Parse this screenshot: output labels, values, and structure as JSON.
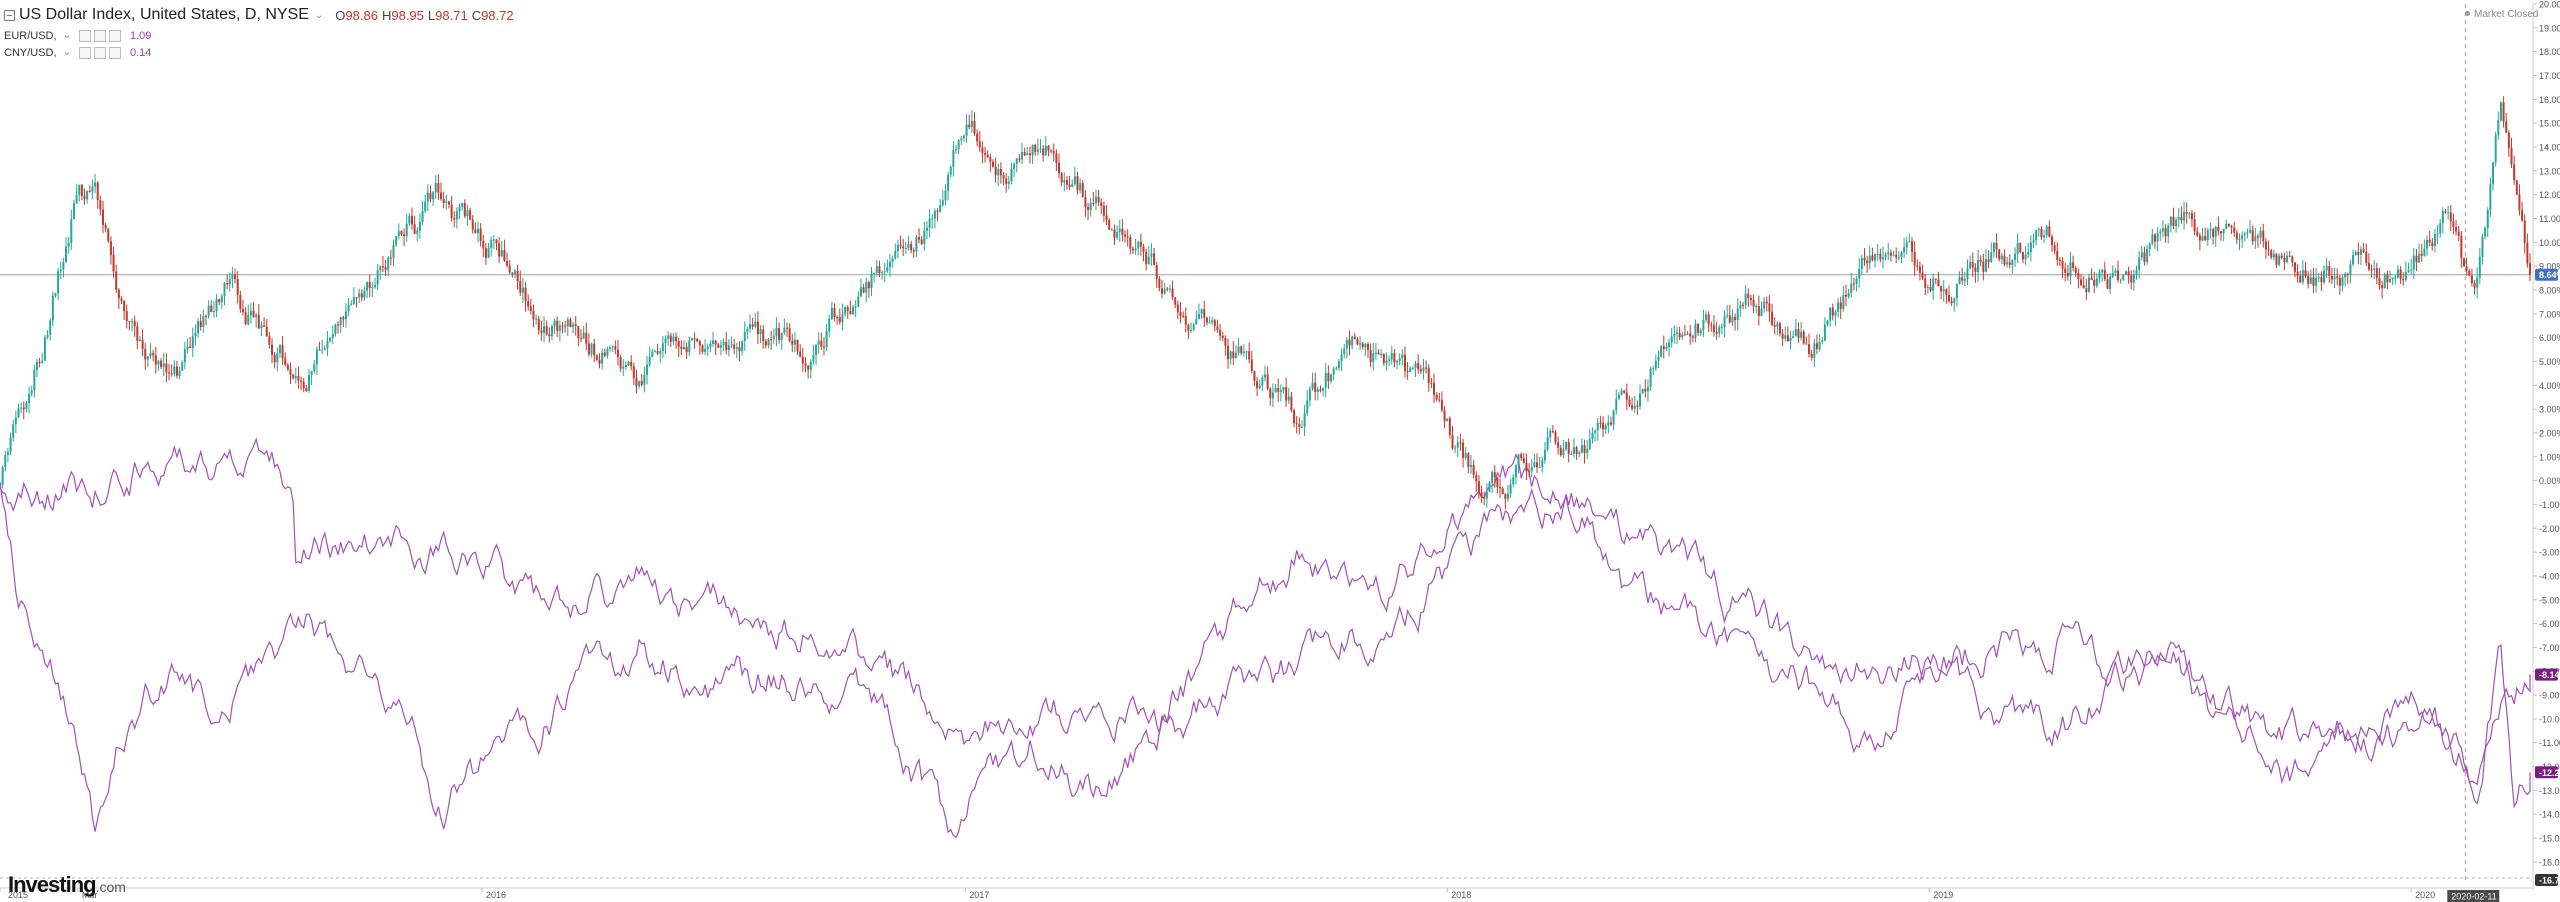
{
  "legend": {
    "main": {
      "title": "US Dollar Index, United States, D, NYSE",
      "caret": "⌄",
      "ohlc": [
        {
          "key": "O",
          "value": "98.86"
        },
        {
          "key": "H",
          "value": "98.95"
        },
        {
          "key": "L",
          "value": "98.71"
        },
        {
          "key": "C",
          "value": "98.72"
        }
      ]
    },
    "eur": {
      "label": "EUR/USD,",
      "caret": "⌄",
      "value": "1.09"
    },
    "cny": {
      "label": "CNY/USD,",
      "caret": "⌄",
      "value": "0.14"
    }
  },
  "status": {
    "market": "Market Closed"
  },
  "brand": {
    "name": "Investing",
    "suffix": ".com"
  },
  "colors": {
    "up": "#26a69a",
    "down": "#c0392b",
    "comparison": "#a150b5",
    "price_label_bg": "#3d6fc9",
    "comparison_label_bg": "#7b1d7e"
  },
  "chart_data": {
    "type": "line",
    "axis": {
      "y_unit": "%",
      "ylim": [
        -16.76,
        20.0
      ],
      "y_ticks": [
        "20.00%",
        "19.00%",
        "18.00%",
        "17.00%",
        "16.00%",
        "15.00%",
        "14.00%",
        "13.00%",
        "12.00%",
        "11.00%",
        "10.00%",
        "9.00%",
        "8.00%",
        "7.00%",
        "6.00%",
        "5.00%",
        "4.00%",
        "3.00%",
        "2.00%",
        "1.00%",
        "0.00%",
        "-1.00%",
        "-2.00%",
        "-3.00%",
        "-4.00%",
        "-5.00%",
        "-6.00%",
        "-7.00%",
        "-8.00%",
        "-9.00%",
        "-10.00%",
        "-11.00%",
        "-12.00%",
        "-13.00%",
        "-14.00%",
        "-15.00%",
        "-16.00%"
      ],
      "y_tick_values": [
        20,
        19,
        18,
        17,
        16,
        15,
        14,
        13,
        12,
        11,
        10,
        9,
        8,
        7,
        6,
        5,
        4,
        3,
        2,
        1,
        0,
        -1,
        -2,
        -3,
        -4,
        -5,
        -6,
        -7,
        -8,
        -9,
        -10,
        -11,
        -12,
        -13,
        -14,
        -15,
        -16
      ],
      "x_range": [
        "2015-01-01",
        "2020-03-31"
      ],
      "x_ticks": [
        {
          "label": "2015",
          "date": "2015-01-01"
        },
        {
          "label": "Mar",
          "date": "2015-03-01"
        },
        {
          "label": "2016",
          "date": "2016-01-01"
        },
        {
          "label": "2017",
          "date": "2017-01-01"
        },
        {
          "label": "2018",
          "date": "2018-01-01"
        },
        {
          "label": "2019",
          "date": "2019-01-01"
        },
        {
          "label": "2020",
          "date": "2020-01-01"
        }
      ],
      "grid": false
    },
    "crosshair": {
      "date": "2020-02-11",
      "label": "2020-02-11"
    },
    "reference_line": {
      "value": 8.64,
      "label": "8.64%"
    },
    "axis_labels": [
      {
        "value": 8.64,
        "label": "8.64%",
        "series": "US Dollar Index"
      },
      {
        "value": -8.14,
        "label": "-8.14%",
        "series": "CNY/USD"
      },
      {
        "value": -12.24,
        "label": "-12.24%",
        "series": "EUR/USD"
      },
      {
        "value": -16.76,
        "label": "-16.76",
        "series": "axis-min"
      }
    ],
    "series": [
      {
        "name": "US Dollar Index",
        "style": "candlestick",
        "x": [
          "2015-01-01",
          "2015-01-15",
          "2015-02-01",
          "2015-03-01",
          "2015-03-15",
          "2015-04-10",
          "2015-05-15",
          "2015-06-20",
          "2015-08-20",
          "2015-10-15",
          "2015-11-30",
          "2016-01-15",
          "2016-02-20",
          "2016-05-01",
          "2016-06-15",
          "2016-09-01",
          "2016-11-01",
          "2016-12-05",
          "2017-01-03",
          "2017-02-01",
          "2017-03-05",
          "2017-04-15",
          "2017-06-01",
          "2017-07-20",
          "2017-09-08",
          "2017-10-25",
          "2017-12-15",
          "2018-02-01",
          "2018-03-20",
          "2018-04-17",
          "2018-06-15",
          "2018-08-15",
          "2018-10-01",
          "2018-11-15",
          "2019-01-15",
          "2019-04-01",
          "2019-05-30",
          "2019-07-15",
          "2019-10-01",
          "2019-12-31",
          "2020-01-25",
          "2020-02-19",
          "2020-03-09",
          "2020-03-19",
          "2020-03-31"
        ],
        "values": [
          0.0,
          2.0,
          5.5,
          12.5,
          11.5,
          6.0,
          5.0,
          8.0,
          4.5,
          9.0,
          11.5,
          9.5,
          6.5,
          4.5,
          6.5,
          5.5,
          9.0,
          11.0,
          16.0,
          13.0,
          14.5,
          11.0,
          8.5,
          5.5,
          2.5,
          6.0,
          3.5,
          -0.5,
          1.5,
          1.0,
          6.0,
          7.5,
          5.5,
          9.0,
          8.5,
          10.0,
          8.5,
          11.0,
          9.0,
          9.0,
          11.5,
          6.5,
          15.5,
          12.5,
          8.64
        ]
      },
      {
        "name": "EUR/USD",
        "style": "line",
        "x": [
          "2015-01-01",
          "2015-01-15",
          "2015-02-10",
          "2015-03-05",
          "2015-03-13",
          "2015-04-05",
          "2015-05-15",
          "2015-06-10",
          "2015-08-24",
          "2015-11-01",
          "2015-12-02",
          "2016-01-15",
          "2016-05-01",
          "2016-06-24",
          "2016-08-15",
          "2016-11-01",
          "2016-12-20",
          "2017-01-10",
          "2017-03-01",
          "2017-04-15",
          "2017-06-01",
          "2017-08-01",
          "2017-09-10",
          "2017-11-01",
          "2018-01-15",
          "2018-02-15",
          "2018-04-10",
          "2018-05-20",
          "2018-07-15",
          "2018-09-15",
          "2018-11-12",
          "2019-01-10",
          "2019-04-10",
          "2019-06-20",
          "2019-08-15",
          "2019-10-01",
          "2019-11-15",
          "2020-01-01",
          "2020-02-19",
          "2020-03-09",
          "2020-03-19",
          "2020-03-31"
        ],
        "values": [
          0.0,
          -4.5,
          -7.5,
          -12.5,
          -14.5,
          -10.5,
          -7.5,
          -10.0,
          -5.5,
          -10.0,
          -13.5,
          -11.5,
          -7.0,
          -9.0,
          -8.0,
          -9.5,
          -15.0,
          -13.0,
          -11.0,
          -13.5,
          -10.0,
          -5.5,
          -3.0,
          -5.5,
          -1.5,
          0.0,
          -1.0,
          -5.0,
          -6.5,
          -8.0,
          -10.5,
          -8.5,
          -10.5,
          -7.0,
          -9.5,
          -13.0,
          -11.0,
          -9.0,
          -12.5,
          -7.0,
          -13.0,
          -12.24
        ]
      },
      {
        "name": "CNY/USD",
        "style": "line",
        "x": [
          "2015-01-01",
          "2015-03-01",
          "2015-04-15",
          "2015-06-15",
          "2015-08-10",
          "2015-08-13",
          "2015-11-01",
          "2016-01-10",
          "2016-03-01",
          "2016-05-01",
          "2016-07-01",
          "2016-09-15",
          "2016-11-15",
          "2016-12-30",
          "2017-02-15",
          "2017-04-01",
          "2017-06-15",
          "2017-09-01",
          "2017-12-15",
          "2018-02-01",
          "2018-04-10",
          "2018-06-15",
          "2018-08-15",
          "2018-10-15",
          "2019-01-15",
          "2019-04-15",
          "2019-05-20",
          "2019-07-01",
          "2019-08-05",
          "2019-09-30",
          "2019-12-01",
          "2020-01-15",
          "2020-02-15",
          "2020-03-31"
        ],
        "values": [
          0.0,
          -0.5,
          0.5,
          0.3,
          0.0,
          -3.0,
          -2.5,
          -4.0,
          -5.3,
          -4.5,
          -5.5,
          -6.5,
          -8.5,
          -10.5,
          -9.8,
          -9.5,
          -10.2,
          -8.0,
          -5.0,
          -2.0,
          -1.0,
          -3.0,
          -5.5,
          -7.5,
          -7.5,
          -6.5,
          -8.0,
          -7.8,
          -10.0,
          -10.5,
          -11.5,
          -9.5,
          -12.0,
          -8.14
        ]
      }
    ]
  }
}
